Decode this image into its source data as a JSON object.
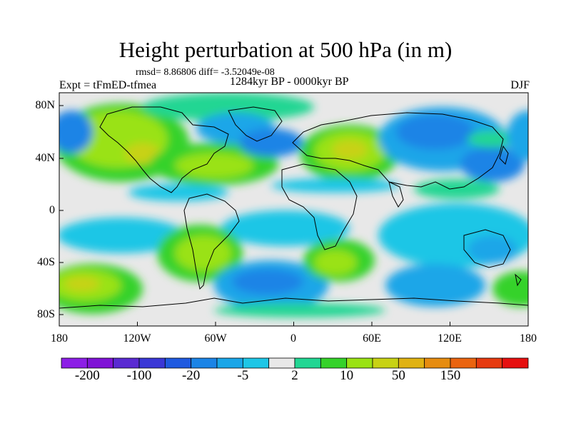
{
  "figure": {
    "title": "Height perturbation at 500 hPa (in m)",
    "stats": "rmsd= 8.86806 diff= -3.52049e-08",
    "period": "1284kyr BP - 0000kyr BP",
    "experiment": "Expt = tFmED-tfmea",
    "season": "DJF"
  },
  "axes": {
    "lon_ticks": [
      "180",
      "120W",
      "60W",
      "0",
      "60E",
      "120E",
      "180"
    ],
    "lat_ticks": [
      "80N",
      "40N",
      "0",
      "40S",
      "80S"
    ]
  },
  "colorbar": {
    "colors": [
      "#8c1ee6",
      "#7f12d6",
      "#5a2ad2",
      "#3a37d6",
      "#1f5ae0",
      "#1b84e6",
      "#1aa6e8",
      "#1ec6e6",
      "#e8e8e8",
      "#22d693",
      "#35d22a",
      "#9ae214",
      "#c8d214",
      "#e0b212",
      "#e68c10",
      "#ea6410",
      "#e63a10",
      "#e61010"
    ],
    "labels": [
      {
        "text": "-200",
        "index": 1
      },
      {
        "text": "-100",
        "index": 3
      },
      {
        "text": "-20",
        "index": 5
      },
      {
        "text": "-5",
        "index": 7
      },
      {
        "text": "2",
        "index": 9
      },
      {
        "text": "10",
        "index": 11
      },
      {
        "text": "50",
        "index": 13
      },
      {
        "text": "150",
        "index": 15
      }
    ]
  }
}
